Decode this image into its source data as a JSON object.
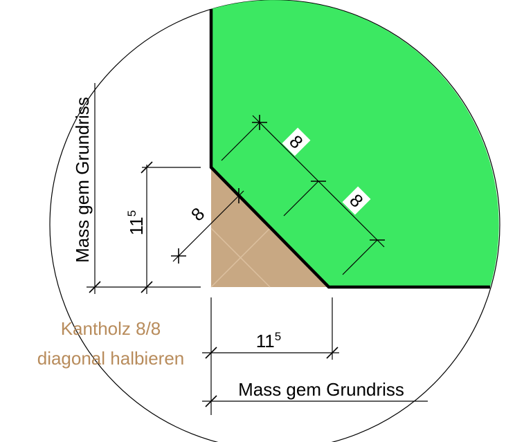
{
  "labels": {
    "left_dimension": "Mass gem Grundriss",
    "vertical_small": {
      "base": "11",
      "sup": "5"
    },
    "diagonal_small": "8",
    "diagonal_upper": "8",
    "diagonal_lower": "8",
    "material_line1": "Kantholz 8/8",
    "material_line2": "diagonal halbieren",
    "horizontal_small": {
      "base": "11",
      "sup": "5"
    },
    "bottom_dimension": "Mass gem Grundriss"
  }
}
